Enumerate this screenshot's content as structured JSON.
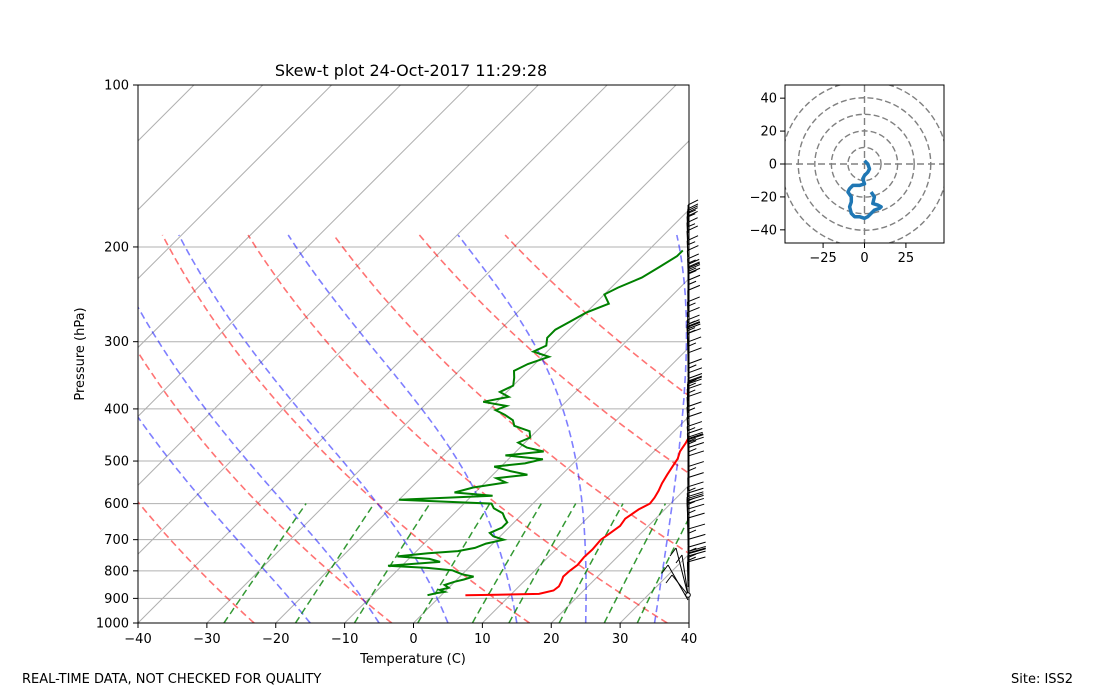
{
  "chart_data": [
    {
      "type": "line",
      "chart_kind": "skew-t log-p diagram",
      "title": "Skew-t plot 24-Oct-2017 11:29:28",
      "xlabel": "Temperature (C)",
      "ylabel": "Pressure (hPa)",
      "xlim": [
        -40,
        40
      ],
      "ylim": [
        1000,
        100
      ],
      "y_scale": "log",
      "x_ticks": [
        -40,
        -30,
        -20,
        -10,
        0,
        10,
        20,
        30,
        40
      ],
      "y_ticks": [
        100,
        200,
        300,
        400,
        500,
        600,
        700,
        800,
        900,
        1000
      ],
      "series": [
        {
          "color": "#ff0000",
          "points": [
            [
              3.5,
              888
            ],
            [
              8,
              886
            ],
            [
              14,
              883
            ],
            [
              15.6,
              870
            ],
            [
              15.8,
              855
            ],
            [
              15.4,
              835
            ],
            [
              15.0,
              820
            ],
            [
              15.1,
              800
            ],
            [
              15.4,
              780
            ],
            [
              15.2,
              755
            ],
            [
              15.3,
              730
            ],
            [
              15.1,
              700
            ],
            [
              15.5,
              680
            ],
            [
              15.9,
              660
            ],
            [
              15.6,
              640
            ],
            [
              16.2,
              615
            ],
            [
              17.0,
              600
            ],
            [
              16.8,
              585
            ],
            [
              16.4,
              568
            ],
            [
              15.8,
              550
            ],
            [
              15.3,
              530
            ],
            [
              14.9,
              512
            ],
            [
              14.5,
              495
            ],
            [
              13.8,
              480
            ],
            [
              13.4,
              463
            ],
            [
              12.6,
              440
            ],
            [
              12.0,
              420
            ],
            [
              11.3,
              398
            ],
            [
              10.2,
              378
            ],
            [
              8.8,
              360
            ],
            [
              7.5,
              345
            ],
            [
              6.2,
              328
            ],
            [
              4.8,
              312
            ],
            [
              3.5,
              298
            ],
            [
              2.5,
              283
            ],
            [
              2.0,
              270
            ],
            [
              1.3,
              260
            ],
            [
              0.6,
              250
            ],
            [
              -0.6,
              240
            ],
            [
              -1.5,
              230
            ],
            [
              -3.0,
              218
            ],
            [
              -4.2,
              208
            ],
            [
              -5.0,
              202
            ]
          ]
        },
        {
          "color": "#008000",
          "points": [
            [
              -2,
              888
            ],
            [
              -1,
              880
            ],
            [
              0,
              875
            ],
            [
              -1,
              868
            ],
            [
              0,
              860
            ],
            [
              -1,
              850
            ],
            [
              0,
              838
            ],
            [
              1,
              830
            ],
            [
              2,
              820
            ],
            [
              0,
              812
            ],
            [
              -1,
              805
            ],
            [
              -2,
              798
            ],
            [
              -6,
              790
            ],
            [
              -12,
              783
            ],
            [
              -5,
              770
            ],
            [
              -7,
              760
            ],
            [
              -12,
              752
            ],
            [
              -8,
              742
            ],
            [
              -4,
              735
            ],
            [
              -2,
              725
            ],
            [
              -1,
              712
            ],
            [
              1,
              700
            ],
            [
              -1,
              690
            ],
            [
              -2,
              680
            ],
            [
              -1,
              665
            ],
            [
              -1,
              650
            ],
            [
              -2,
              638
            ],
            [
              -3,
              625
            ],
            [
              -5,
              612
            ],
            [
              -6,
              600
            ],
            [
              -20,
              590
            ],
            [
              -7,
              580
            ],
            [
              -13,
              572
            ],
            [
              -11,
              560
            ],
            [
              -7,
              548
            ],
            [
              -9,
              538
            ],
            [
              -5,
              530
            ],
            [
              -8,
              522
            ],
            [
              -11,
              512
            ],
            [
              -7,
              505
            ],
            [
              -5,
              496
            ],
            [
              -11,
              488
            ],
            [
              -6,
              480
            ],
            [
              -9,
              472
            ],
            [
              -11,
              462
            ],
            [
              -10,
              452
            ],
            [
              -11,
              440
            ],
            [
              -14,
              430
            ],
            [
              -15,
              420
            ],
            [
              -17,
              410
            ],
            [
              -19,
              402
            ],
            [
              -18,
              395
            ],
            [
              -22,
              388
            ],
            [
              -19,
              380
            ],
            [
              -21,
              372
            ],
            [
              -20,
              362
            ],
            [
              -21,
              350
            ],
            [
              -22,
              340
            ],
            [
              -21,
              330
            ],
            [
              -19,
              320
            ],
            [
              -22,
              313
            ],
            [
              -21,
              305
            ],
            [
              -22,
              295
            ],
            [
              -22,
              285
            ],
            [
              -21,
              275
            ],
            [
              -20,
              265
            ],
            [
              -18,
              255
            ],
            [
              -20,
              245
            ],
            [
              -19,
              238
            ],
            [
              -17,
              228
            ],
            [
              -16,
              218
            ],
            [
              -15,
              208
            ],
            [
              -15,
              203
            ]
          ]
        }
      ]
    },
    {
      "type": "line",
      "chart_kind": "hodograph",
      "xlim": [
        -48,
        48
      ],
      "ylim": [
        -48,
        48
      ],
      "x_ticks": [
        -25,
        0,
        25
      ],
      "y_ticks": [
        -40,
        -20,
        0,
        20,
        40
      ],
      "range_rings": [
        10,
        20,
        30,
        40,
        50
      ],
      "color": "#1f77b4",
      "points": [
        [
          0,
          2
        ],
        [
          2,
          0
        ],
        [
          3,
          -3
        ],
        [
          2,
          -5
        ],
        [
          0,
          -7
        ],
        [
          -1,
          -9
        ],
        [
          0,
          -12
        ],
        [
          -3,
          -13
        ],
        [
          -7,
          -13
        ],
        [
          -9,
          -15
        ],
        [
          -10,
          -17
        ],
        [
          -8,
          -20
        ],
        [
          -8,
          -23
        ],
        [
          -9,
          -26
        ],
        [
          -8,
          -30
        ],
        [
          -6,
          -32
        ],
        [
          -3,
          -32
        ],
        [
          0,
          -33
        ],
        [
          2,
          -32
        ],
        [
          4,
          -30
        ],
        [
          6,
          -28
        ],
        [
          9,
          -27
        ],
        [
          10,
          -26
        ],
        [
          8,
          -25
        ],
        [
          5,
          -24
        ],
        [
          6,
          -20
        ],
        [
          4,
          -17
        ]
      ]
    }
  ],
  "footer": {
    "left": "REAL-TIME DATA, NOT CHECKED FOR QUALITY",
    "right": "Site: ISS2"
  }
}
